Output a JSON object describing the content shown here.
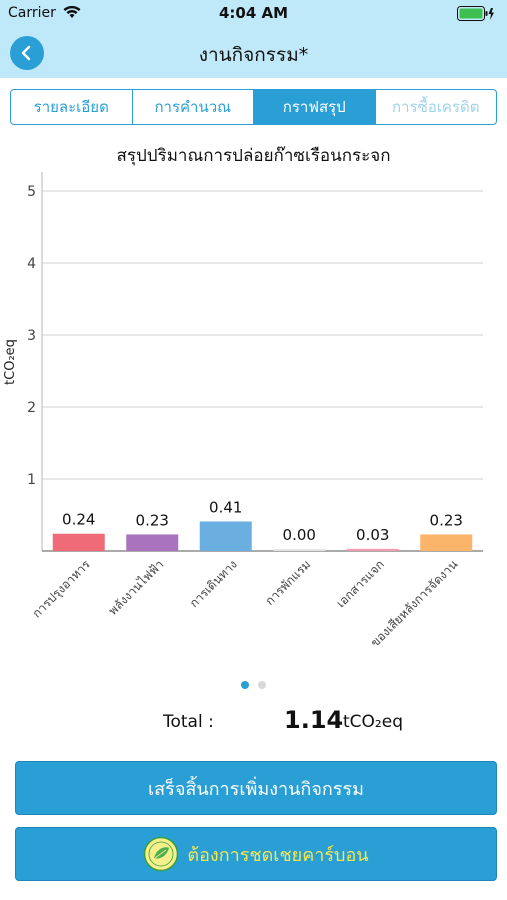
{
  "status_bar": {
    "carrier": "Carrier",
    "time": "4:04 AM"
  },
  "nav": {
    "title": "งานกิจกรรม*"
  },
  "tabs": [
    {
      "label": "รายละเอียด",
      "active": false
    },
    {
      "label": "การคำนวณ",
      "active": false
    },
    {
      "label": "กราฟสรุป",
      "active": true
    },
    {
      "label": "การซื้อเครดิต",
      "active": false
    }
  ],
  "chart_data": {
    "type": "bar",
    "title": "สรุปปริมาณการปล่อยก๊าซเรือนกระจก",
    "ylabel": "tCO₂eq",
    "categories": [
      "การปรุงอาหาร",
      "พลังงานไฟฟ้า",
      "การเดินทาง",
      "การพักแรม",
      "เอกสารแจก",
      "ของเสียหลังการจัดงาน"
    ],
    "values": [
      0.24,
      0.23,
      0.41,
      0.0,
      0.03,
      0.23
    ],
    "value_labels": [
      "0.24",
      "0.23",
      "0.41",
      "0.00",
      "0.03",
      "0.23"
    ],
    "colors": [
      "#ef6b78",
      "#a974bd",
      "#6aafe0",
      "#e4e4e4",
      "#f29cb0",
      "#fbb56a"
    ],
    "yticks": [
      "1",
      "2",
      "3",
      "4",
      "5"
    ],
    "ylim": [
      0,
      5.2
    ],
    "grid": true,
    "legend": "none"
  },
  "pager": {
    "pages": 2,
    "current": 1
  },
  "total": {
    "label": "Total :",
    "value": "1.14",
    "unit": "tCO₂eq"
  },
  "buttons": {
    "finish": "เสร็จสิ้นการเพิ่มงานกิจกรรม",
    "offset": "ต้องการชดเชยคาร์บอน",
    "offset_icon_text": "CARBON NEUTRAL"
  }
}
